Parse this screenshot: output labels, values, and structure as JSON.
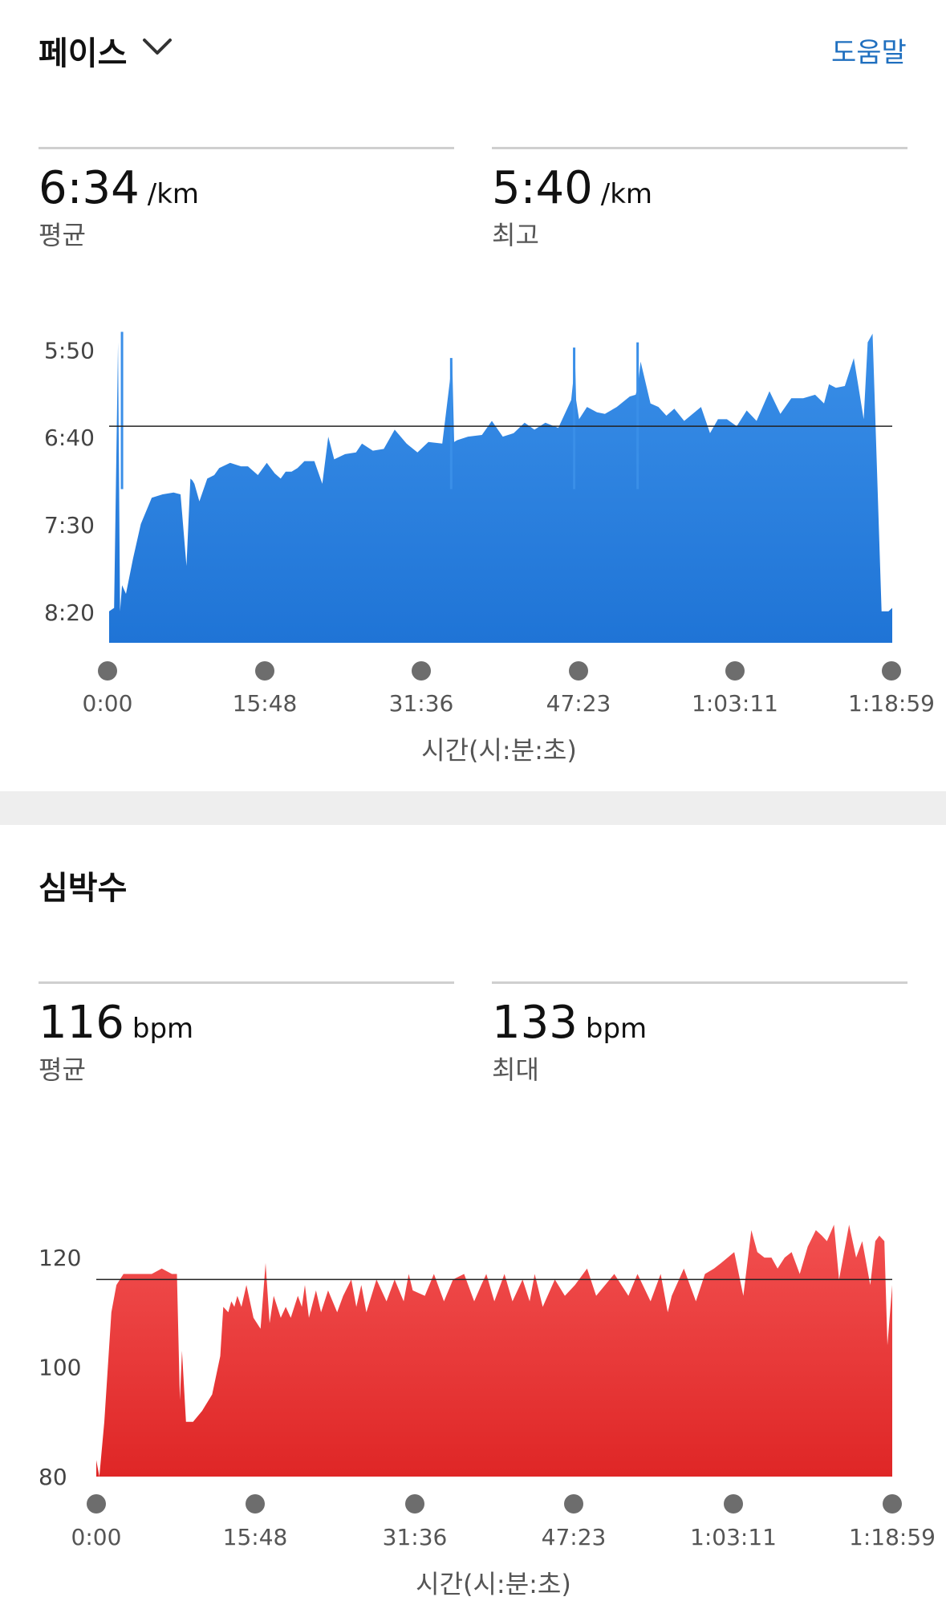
{
  "pace": {
    "title": "페이스",
    "help_label": "도움말",
    "avg": {
      "value": "6:34",
      "unit": "/km",
      "label": "평균"
    },
    "best": {
      "value": "5:40",
      "unit": "/km",
      "label": "최고"
    }
  },
  "heart": {
    "title": "심박수",
    "avg": {
      "value": "116",
      "unit": "bpm",
      "label": "평균"
    },
    "max": {
      "value": "133",
      "unit": "bpm",
      "label": "최대"
    }
  },
  "colors": {
    "pace_fill_top": "#3a8fe8",
    "pace_fill_bottom": "#1f74d6",
    "hr_fill_top": "#f25050",
    "hr_fill_bottom": "#df2626",
    "help": "#1f6fbf"
  },
  "chart_data": [
    {
      "type": "area",
      "xlabel": "시간(시:분:초)",
      "x_tick_labels": [
        "0:00",
        "15:48",
        "31:36",
        "47:23",
        "1:03:11",
        "1:18:59"
      ],
      "y_tick_labels": [
        "5:50",
        "6:40",
        "7:30",
        "8:20"
      ],
      "y_ticks_seconds": [
        350,
        400,
        450,
        500
      ],
      "ylim_seconds": [
        337,
        518
      ],
      "xlim_minutes": [
        0,
        78.98
      ],
      "y_inverted": true,
      "reference_line_seconds": 394,
      "x_minutes": [
        0,
        0.5,
        0.9,
        1.1,
        1.3,
        1.7,
        2.4,
        3.2,
        4.3,
        5.4,
        6.5,
        7.2,
        7.8,
        8.2,
        8.4,
        8.6,
        9.1,
        9.9,
        10.6,
        11.1,
        12.2,
        13.3,
        14.0,
        15.0,
        15.9,
        16.7,
        17.3,
        17.8,
        18.4,
        19.0,
        19.7,
        20.7,
        21.5,
        22.1,
        22.7,
        23.8,
        24.9,
        25.5,
        26.6,
        27.7,
        28.8,
        30.0,
        31.1,
        32.2,
        33.6,
        34.6,
        34.8,
        35.1,
        36.2,
        37.6,
        38.6,
        39.7,
        40.8,
        41.9,
        42.9,
        44.0,
        45.3,
        46.6,
        47.0,
        47.1,
        47.4,
        48.2,
        49.2,
        50.0,
        51.2,
        52.5,
        53.1,
        53.3,
        53.6,
        54.6,
        55.4,
        56.2,
        57.0,
        58.0,
        59.7,
        60.6,
        61.4,
        62.3,
        63.3,
        64.3,
        65.3,
        66.6,
        67.7,
        68.8,
        70.0,
        71.2,
        72.1,
        72.6,
        73.3,
        74.2,
        75.1,
        75.7,
        76.1,
        76.5,
        77.0,
        77.9,
        78.6,
        78.98
      ],
      "y_seconds": [
        500,
        498,
        346,
        500,
        485,
        490,
        470,
        450,
        435,
        433,
        432,
        433,
        474,
        424,
        425,
        427,
        437,
        424,
        422,
        418,
        415,
        417,
        417,
        422,
        415,
        421,
        424,
        420,
        420,
        418,
        414,
        414,
        427,
        400,
        413,
        410,
        409,
        404,
        408,
        407,
        396,
        404,
        409,
        403,
        404,
        357,
        403,
        402,
        400,
        399,
        391,
        400,
        398,
        392,
        396,
        392,
        395,
        379,
        357,
        379,
        390,
        383,
        386,
        387,
        383,
        377,
        376,
        372,
        357,
        381,
        383,
        388,
        384,
        391,
        383,
        398,
        390,
        390,
        394,
        385,
        391,
        374,
        387,
        378,
        378,
        376,
        381,
        370,
        372,
        371,
        355,
        376,
        390,
        346,
        341,
        500,
        500,
        498
      ],
      "spikes": [
        {
          "x_minutes": 1.3,
          "y_seconds": 340
        },
        {
          "x_minutes": 34.5,
          "y_seconds": 355
        },
        {
          "x_minutes": 46.9,
          "y_seconds": 349
        },
        {
          "x_minutes": 53.3,
          "y_seconds": 346
        }
      ]
    },
    {
      "type": "area",
      "xlabel": "시간(시:분:초)",
      "x_tick_labels": [
        "0:00",
        "15:48",
        "31:36",
        "47:23",
        "1:03:11",
        "1:18:59"
      ],
      "y_tick_labels": [
        "120",
        "100",
        "80"
      ],
      "y_ticks": [
        120,
        100,
        80
      ],
      "ylim": [
        80,
        139.5
      ],
      "xlim_minutes": [
        0,
        78.98
      ],
      "reference_line_bpm": 116,
      "x_minutes": [
        0,
        0.3,
        0.8,
        1.5,
        2.0,
        2.7,
        3.5,
        4.5,
        5.5,
        6.5,
        7.5,
        8.0,
        8.3,
        8.5,
        8.9,
        9.6,
        10.5,
        11.5,
        12.3,
        12.6,
        13.1,
        13.4,
        13.7,
        14.0,
        14.4,
        14.9,
        15.6,
        16.3,
        16.8,
        17.2,
        17.6,
        18.3,
        18.8,
        19.3,
        20.0,
        20.4,
        20.7,
        21.1,
        21.8,
        22.3,
        23.0,
        23.9,
        24.5,
        25.3,
        25.8,
        26.3,
        26.8,
        27.8,
        28.8,
        29.6,
        30.5,
        31.0,
        31.4,
        32.6,
        33.5,
        34.5,
        35.4,
        36.5,
        37.5,
        38.2,
        38.7,
        39.5,
        40.5,
        41.3,
        42.3,
        43.0,
        43.5,
        44.3,
        45.5,
        46.5,
        47.5,
        48.7,
        49.6,
        51.4,
        52.8,
        53.7,
        55.0,
        56.0,
        56.7,
        57.1,
        58.3,
        59.5,
        60.4,
        61.3,
        62.0,
        63.3,
        64.2,
        65.0,
        65.6,
        66.3,
        67.0,
        67.6,
        68.3,
        69.0,
        69.8,
        70.6,
        71.4,
        72.0,
        72.5,
        73.2,
        73.7,
        74.7,
        75.4,
        76.0,
        76.8,
        77.3,
        77.7,
        78.2,
        78.5,
        78.98
      ],
      "y_bpm": [
        83,
        80,
        90,
        110,
        115,
        117,
        117,
        117,
        117,
        118,
        117,
        117,
        94,
        103,
        90,
        90,
        92,
        95,
        102,
        111,
        110,
        112,
        111,
        113,
        111,
        115,
        109,
        107,
        119,
        108,
        113,
        109,
        111,
        109,
        113,
        111,
        115,
        109,
        114,
        110,
        114,
        110,
        113,
        116,
        111,
        115,
        110,
        116,
        112,
        116,
        112,
        117,
        114,
        113,
        117,
        112,
        116,
        117,
        112,
        115,
        117,
        112,
        117,
        112,
        116,
        112,
        117,
        111,
        116,
        113,
        115,
        118,
        113,
        117,
        113,
        117,
        112,
        117,
        110,
        113,
        118,
        112,
        117,
        118,
        119,
        121,
        113,
        125,
        121,
        120,
        120,
        118,
        120,
        121,
        117,
        122,
        125,
        124,
        123,
        126,
        116,
        126,
        120,
        123,
        115,
        123,
        124,
        123,
        104,
        115
      ]
    }
  ]
}
